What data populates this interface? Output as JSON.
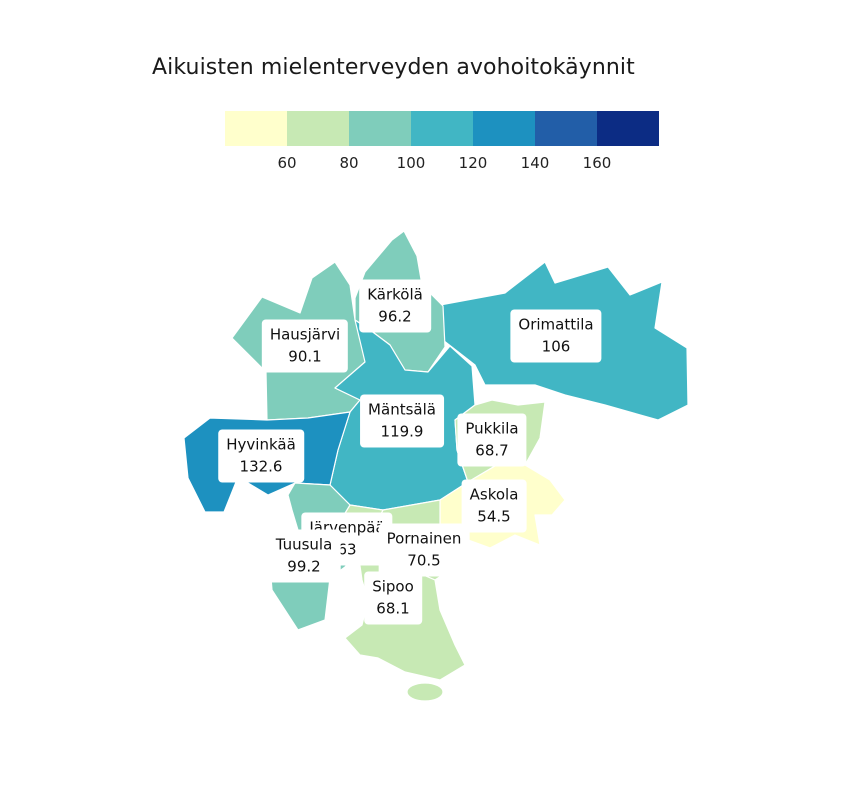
{
  "title": "Aikuisten mielenterveyden avohoitokäynnit",
  "legend": {
    "colors": [
      "#ffffcc",
      "#c7e9b4",
      "#7fcdbb",
      "#41b6c4",
      "#1d91c0",
      "#225ea8",
      "#0c2c84"
    ],
    "ticks": [
      "60",
      "80",
      "100",
      "120",
      "140",
      "160"
    ]
  },
  "regions": [
    {
      "id": "karkola",
      "name": "Kärkölä",
      "value": "96.2",
      "color": "#7fcdbb"
    },
    {
      "id": "orimattila",
      "name": "Orimattila",
      "value": "106",
      "color": "#41b6c4"
    },
    {
      "id": "hausjarvi",
      "name": "Hausjärvi",
      "value": "90.1",
      "color": "#7fcdbb"
    },
    {
      "id": "mantsala",
      "name": "Mäntsälä",
      "value": "119.9",
      "color": "#41b6c4"
    },
    {
      "id": "pukkila",
      "name": "Pukkila",
      "value": "68.7",
      "color": "#c7e9b4"
    },
    {
      "id": "hyvinkaa",
      "name": "Hyvinkää",
      "value": "132.6",
      "color": "#1d91c0"
    },
    {
      "id": "askola",
      "name": "Askola",
      "value": "54.5",
      "color": "#ffffcc"
    },
    {
      "id": "jarvenpaa",
      "name": "Järvenpää",
      "value": "63",
      "color": "#c7e9b4"
    },
    {
      "id": "pornainen",
      "name": "Pornainen",
      "value": "70.5",
      "color": "#c7e9b4"
    },
    {
      "id": "tuusula",
      "name": "Tuusula",
      "value": "99.2",
      "color": "#7fcdbb"
    },
    {
      "id": "sipoo",
      "name": "Sipoo",
      "value": "68.1",
      "color": "#c7e9b4"
    }
  ]
}
